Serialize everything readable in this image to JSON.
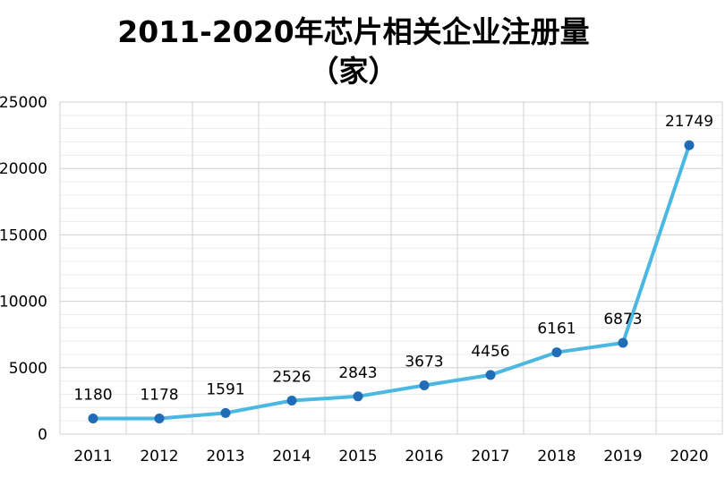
{
  "chart_data": {
    "type": "line",
    "title_line1": "2011-2020年芯片相关企业注册量",
    "title_line2": "（家）",
    "categories": [
      "2011",
      "2012",
      "2013",
      "2014",
      "2015",
      "2016",
      "2017",
      "2018",
      "2019",
      "2020"
    ],
    "series": [
      {
        "values": [
          1180,
          1178,
          1591,
          2526,
          2843,
          3673,
          4456,
          6161,
          6873,
          21749
        ]
      }
    ],
    "data_labels": [
      "1180",
      "1178",
      "1591",
      "2526",
      "2843",
      "3673",
      "4456",
      "6161",
      "6873",
      "21749"
    ],
    "y_ticks": [
      "0",
      "5000",
      "10000",
      "15000",
      "20000",
      "25000"
    ],
    "ylim": [
      0,
      25000
    ],
    "grid": true,
    "legend": "none",
    "colors": {
      "line": "#4BB8E2",
      "marker": "#1F6DB8",
      "grid_major": "#D0D0D0",
      "grid_minor": "#ECECEC"
    }
  }
}
